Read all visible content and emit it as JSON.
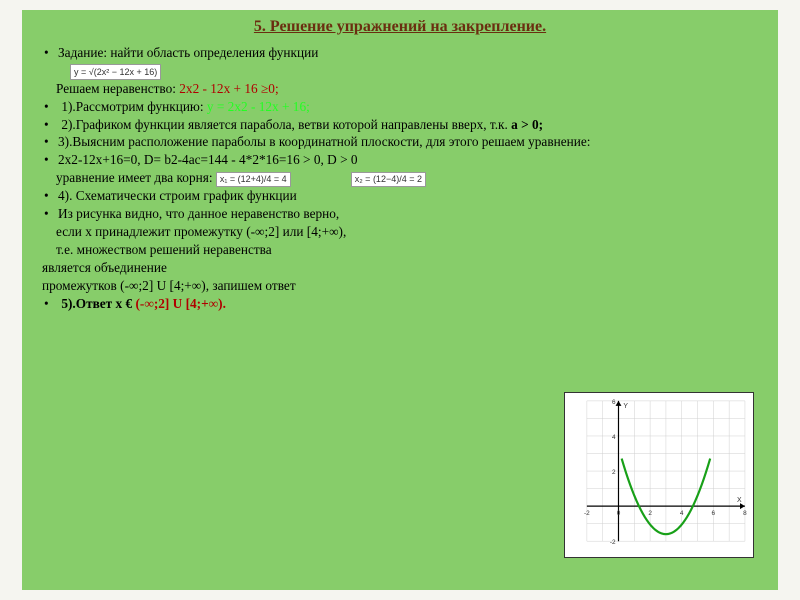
{
  "title": "5. Решение  упражнений  на закрепление.",
  "task_label": "Задание: найти область определения функции",
  "formula": "y = √(2x² − 12x + 16)",
  "ineq_prefix": " Решаем неравенство: ",
  "ineq_expr": "2x2 - 12x + 16 ≥0;",
  "step1_a": "1).Рассмотрим функцию: ",
  "step1_b": "у = 2x2 - 12x + 16;",
  "step2": "2).Графиком функции является парабола, ветви которой направлены вверх, т.к. ",
  "step2_bold": "а > 0;",
  "step3": "3).Выясним расположение параболы в координатной плоскости, для этого решаем уравнение:",
  "discr": "2x2-12x+16=0,    D= b2-4ac=144 - 4*2*16=16  > 0,   D   > 0",
  "roots_label": "   уравнение имеет два корня:   ",
  "root1": "x₁ = (12+4)/4 = 4",
  "root2": "x₂ = (12−4)/4 = 2",
  "step4": "4). Схематически строим график функции",
  "line5": "Из рисунка видно, что данное неравенство верно,",
  "line6": " если х принадлежит промежутку (-∞;2]  или [4;+∞),",
  "line7": " т.е. множеством решений неравенства",
  "line8": "является объединение",
  "line9": "промежутков (-∞;2] U [4;+∞), запишем ответ",
  "answer_a": "5).Ответ x € ",
  "answer_b": "(-∞;2] U [4;+∞).",
  "chart": {
    "xlim": [
      -2,
      8
    ],
    "ylim": [
      -2,
      6
    ],
    "bg": "#ffffff",
    "grid_color": "#cfcfcf",
    "axis_color": "#000000",
    "curve_color": "#18a018",
    "curve_width": 2.2,
    "xticks": [
      -2,
      0,
      2,
      4,
      6,
      8
    ],
    "yticks": [
      -2,
      0,
      2,
      4,
      6
    ],
    "parabola": {
      "a": 0.55,
      "h": 3,
      "k": -1.6,
      "xstart": 0.2,
      "xend": 5.8,
      "steps": 42
    }
  }
}
